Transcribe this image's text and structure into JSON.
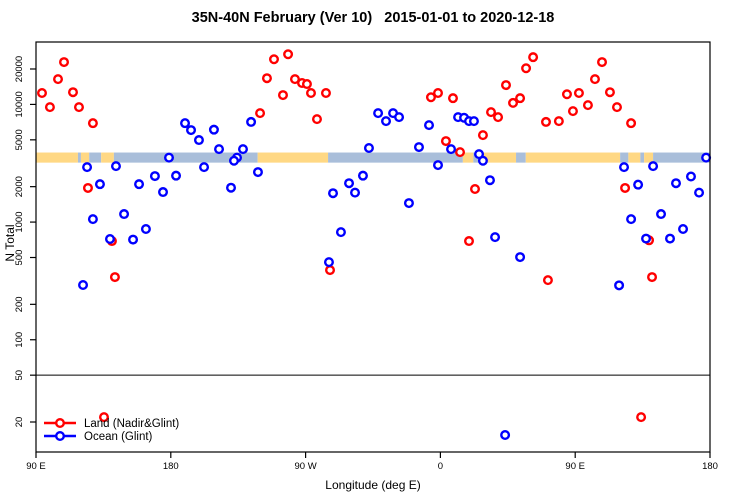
{
  "title": "35N-40N February (Ver 10)   2015-01-01 to 2020-12-18",
  "chart_data": {
    "type": "scatter",
    "title": "35N-40N February (Ver 10)   2015-01-01 to 2020-12-18",
    "xlabel": "Longitude (deg E)",
    "ylabel": "N Total",
    "x_axis": {
      "range": [
        90,
        540
      ],
      "ticks": [
        90,
        180,
        270,
        360,
        450,
        540
      ],
      "tick_labels": [
        "90 E",
        "180",
        "90 W",
        "0",
        "90 E",
        "180"
      ],
      "note": "longitude axis wraps eastward from 90E through 180, 90W, 0, 90E to 180"
    },
    "y_axis": {
      "scale": "log",
      "range": [
        11,
        35000
      ],
      "ticks": [
        20,
        50,
        100,
        200,
        500,
        1000,
        2000,
        5000,
        10000,
        20000
      ],
      "tick_labels": [
        "20",
        "50",
        "100",
        "200",
        "500",
        "1000",
        "2000",
        "5000",
        "10000",
        "20000"
      ]
    },
    "grid": "off",
    "hline": {
      "value": 50,
      "color": "#000000"
    },
    "band": {
      "value_range": [
        3200,
        3900
      ],
      "land_color": "#FFD884",
      "ocean_color": "#A9BEDA",
      "description": "land/ocean surface mask strip along 35N-40N",
      "segments": [
        {
          "from": 90,
          "to": 118,
          "surface": "land"
        },
        {
          "from": 118,
          "to": 120,
          "surface": "ocean"
        },
        {
          "from": 120,
          "to": 125.5,
          "surface": "land"
        },
        {
          "from": 125.5,
          "to": 133.5,
          "surface": "ocean"
        },
        {
          "from": 133.5,
          "to": 142,
          "surface": "land"
        },
        {
          "from": 142,
          "to": 238,
          "surface": "ocean"
        },
        {
          "from": 238,
          "to": 285,
          "surface": "land"
        },
        {
          "from": 285,
          "to": 375,
          "surface": "ocean"
        },
        {
          "from": 375,
          "to": 382,
          "surface": "land"
        },
        {
          "from": 382,
          "to": 388.5,
          "surface": "ocean"
        },
        {
          "from": 388.5,
          "to": 410.5,
          "surface": "land"
        },
        {
          "from": 410.5,
          "to": 417,
          "surface": "ocean"
        },
        {
          "from": 417,
          "to": 480,
          "surface": "land"
        },
        {
          "from": 480,
          "to": 485.5,
          "surface": "ocean"
        },
        {
          "from": 485.5,
          "to": 493.5,
          "surface": "land"
        },
        {
          "from": 493.5,
          "to": 496,
          "surface": "ocean"
        },
        {
          "from": 496,
          "to": 502,
          "surface": "land"
        },
        {
          "from": 502,
          "to": 540,
          "surface": "ocean"
        }
      ]
    },
    "legend": {
      "position": "bottom-left",
      "entries": [
        {
          "label": "Land (Nadir&Glint)",
          "color": "#FF0000"
        },
        {
          "label": "Ocean (Glint)",
          "color": "#0000FF"
        }
      ]
    },
    "series": [
      {
        "name": "Land (Nadir&Glint)",
        "color": "#FF0000",
        "points": [
          [
            108.7,
            22900
          ],
          [
            104.7,
            16400
          ],
          [
            94,
            12500
          ],
          [
            114.7,
            12700
          ],
          [
            99.3,
            9480
          ],
          [
            118.7,
            9480
          ],
          [
            128,
            6930
          ],
          [
            248.9,
            24200
          ],
          [
            258.3,
            26700
          ],
          [
            244.2,
            16700
          ],
          [
            262.9,
            16400
          ],
          [
            267.6,
            15200
          ],
          [
            270.9,
            14900
          ],
          [
            273.6,
            12500
          ],
          [
            283.6,
            12500
          ],
          [
            254.9,
            12000
          ],
          [
            277.6,
            7500
          ],
          [
            239.6,
            8430
          ],
          [
            353.7,
            11500
          ],
          [
            358.4,
            12500
          ],
          [
            368.4,
            11300
          ],
          [
            393.8,
            8600
          ],
          [
            398.5,
            7800
          ],
          [
            388.4,
            5480
          ],
          [
            403.8,
            14600
          ],
          [
            408.5,
            10300
          ],
          [
            413.2,
            11300
          ],
          [
            417.2,
            20300
          ],
          [
            421.9,
            25200
          ],
          [
            363.7,
            4880
          ],
          [
            373.1,
            3930
          ],
          [
            467.9,
            22900
          ],
          [
            463.2,
            16400
          ],
          [
            444.5,
            12200
          ],
          [
            452.5,
            12500
          ],
          [
            473.2,
            12700
          ],
          [
            458.5,
            9860
          ],
          [
            448.5,
            8770
          ],
          [
            439.1,
            7210
          ],
          [
            430.5,
            7100
          ],
          [
            477.9,
            9480
          ],
          [
            487.3,
            6930
          ],
          [
            124.7,
            1950
          ],
          [
            140.7,
            690
          ],
          [
            142.7,
            341
          ],
          [
            286.3,
            391
          ],
          [
            383.1,
            1910
          ],
          [
            379.1,
            690
          ],
          [
            483.3,
            1950
          ],
          [
            499.3,
            700
          ],
          [
            431.8,
            321
          ],
          [
            501.3,
            341
          ],
          [
            135.4,
            22
          ],
          [
            494,
            22
          ]
        ]
      },
      {
        "name": "Ocean (Glint)",
        "color": "#0000FF",
        "points": [
          [
            189.5,
            6930
          ],
          [
            193.5,
            6050
          ],
          [
            198.8,
            4980
          ],
          [
            178.8,
            3530
          ],
          [
            208.8,
            6100
          ],
          [
            233.6,
            7100
          ],
          [
            212.2,
            4170
          ],
          [
            228.2,
            4170
          ],
          [
            224.2,
            3530
          ],
          [
            222.2,
            3320
          ],
          [
            318.4,
            8430
          ],
          [
            323.7,
            7210
          ],
          [
            328.4,
            8430
          ],
          [
            332.4,
            7800
          ],
          [
            352.4,
            6670
          ],
          [
            345.7,
            4340
          ],
          [
            371.8,
            7800
          ],
          [
            375.8,
            7700
          ],
          [
            379.1,
            7210
          ],
          [
            382.4,
            7210
          ],
          [
            367.1,
            4170
          ],
          [
            385.8,
            3780
          ],
          [
            312.3,
            4260
          ],
          [
            537.4,
            3530
          ],
          [
            124.1,
            2930
          ],
          [
            143.4,
            2990
          ],
          [
            132.7,
            2100
          ],
          [
            158.8,
            2100
          ],
          [
            169.4,
            2460
          ],
          [
            183.5,
            2480
          ],
          [
            174.8,
            1800
          ],
          [
            202.2,
            2930
          ],
          [
            128,
            1060
          ],
          [
            148.8,
            1170
          ],
          [
            139.4,
            718
          ],
          [
            154.8,
            710
          ],
          [
            163.4,
            873
          ],
          [
            121.4,
            292
          ],
          [
            238.2,
            2660
          ],
          [
            220.2,
            1960
          ],
          [
            288.3,
            1760
          ],
          [
            299,
            2140
          ],
          [
            303,
            1780
          ],
          [
            308.3,
            2480
          ],
          [
            293.6,
            822
          ],
          [
            285.6,
            457
          ],
          [
            358.4,
            3050
          ],
          [
            393.1,
            2270
          ],
          [
            339,
            1450
          ],
          [
            396.5,
            745
          ],
          [
            413.2,
            504
          ],
          [
            388.4,
            3320
          ],
          [
            482.6,
            2930
          ],
          [
            502,
            2990
          ],
          [
            492,
            2080
          ],
          [
            517.3,
            2140
          ],
          [
            527.3,
            2440
          ],
          [
            532.7,
            1780
          ],
          [
            487.3,
            1060
          ],
          [
            507.3,
            1170
          ],
          [
            497.3,
            724
          ],
          [
            513.3,
            724
          ],
          [
            522,
            873
          ],
          [
            479.3,
            290
          ],
          [
            403.2,
            15.5
          ]
        ]
      }
    ]
  }
}
